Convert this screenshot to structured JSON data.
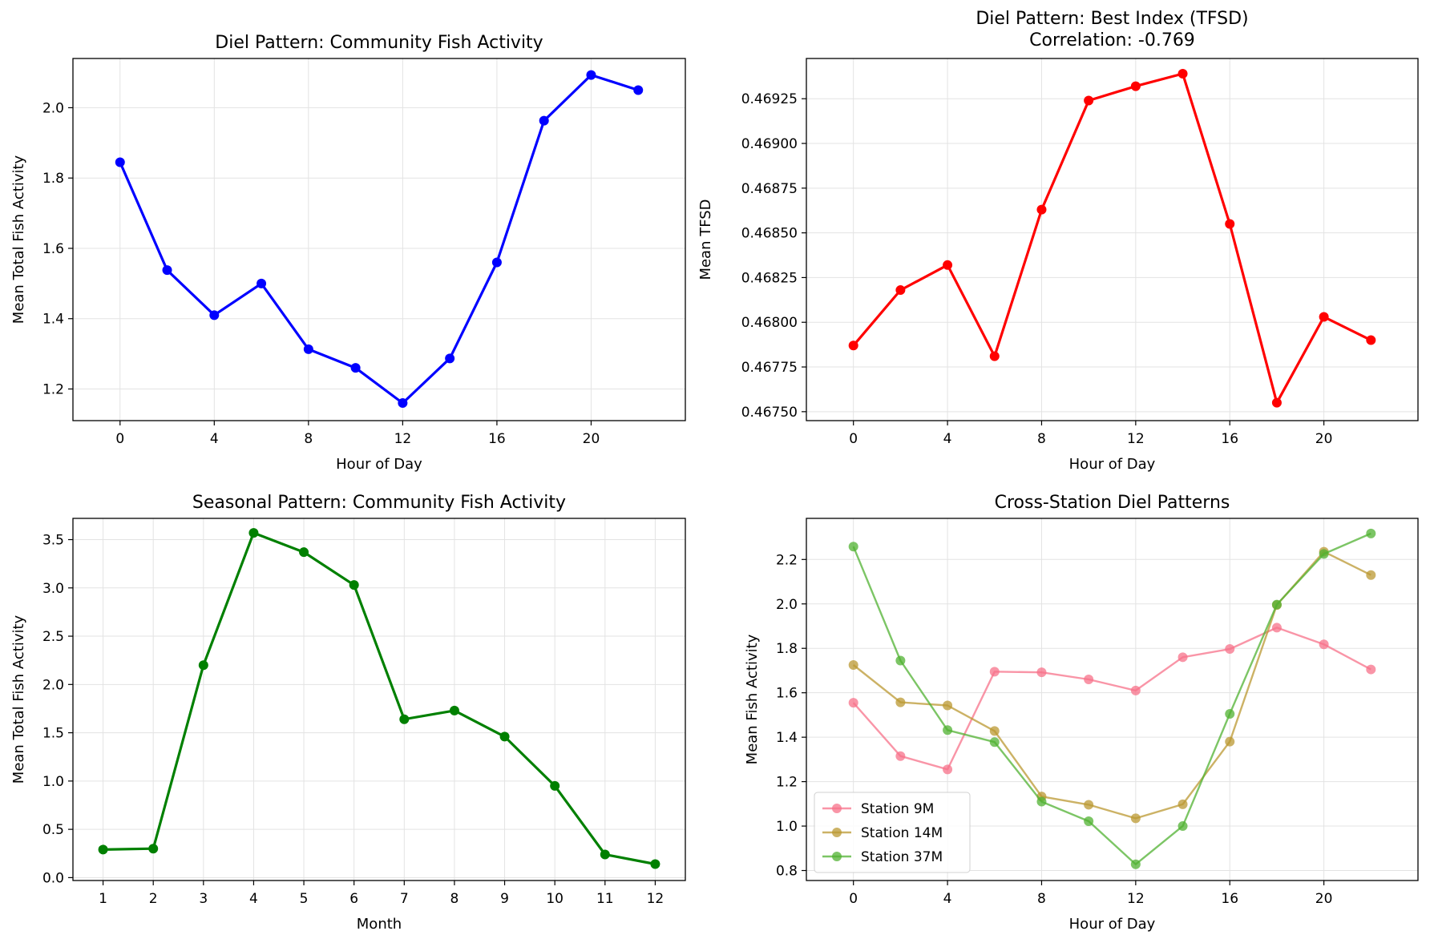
{
  "chart_data": [
    {
      "type": "line",
      "title": "Diel Pattern: Community Fish Activity",
      "xlabel": "Hour of Day",
      "ylabel": "Mean Total Fish Activity",
      "x": [
        0,
        2,
        4,
        6,
        8,
        10,
        12,
        14,
        16,
        18,
        20,
        22
      ],
      "xlim": [
        -2,
        24
      ],
      "ylim": [
        1.11,
        2.14
      ],
      "xticks": [
        0,
        4,
        8,
        12,
        16,
        20
      ],
      "yticks": [
        1.2,
        1.4,
        1.6,
        1.8,
        2.0
      ],
      "yprec": 1,
      "grid": true,
      "series": [
        {
          "color": "#0000ff",
          "alpha": 1,
          "lw": 3.2,
          "r": 6,
          "values": [
            1.845,
            1.538,
            1.41,
            1.5,
            1.313,
            1.26,
            1.16,
            1.287,
            1.56,
            1.963,
            2.093,
            2.05
          ]
        }
      ]
    },
    {
      "type": "line",
      "title": "Diel Pattern: Best Index (TFSD)",
      "subtitle": "Correlation: -0.769",
      "xlabel": "Hour of Day",
      "ylabel": "Mean TFSD",
      "x": [
        0,
        2,
        4,
        6,
        8,
        10,
        12,
        14,
        16,
        18,
        20,
        22
      ],
      "xlim": [
        -2,
        24
      ],
      "ylim": [
        0.46745,
        0.469475
      ],
      "xticks": [
        0,
        4,
        8,
        12,
        16,
        20
      ],
      "yticks": [
        0.4675,
        0.46775,
        0.468,
        0.46825,
        0.4685,
        0.46875,
        0.469,
        0.46925
      ],
      "yprec": 5,
      "grid": true,
      "series": [
        {
          "color": "#ff0000",
          "alpha": 1,
          "lw": 3.2,
          "r": 6,
          "values": [
            0.46787,
            0.46818,
            0.46832,
            0.46781,
            0.46863,
            0.46924,
            0.46932,
            0.46939,
            0.46855,
            0.46755,
            0.46803,
            0.4679
          ]
        }
      ]
    },
    {
      "type": "line",
      "title": "Seasonal Pattern: Community Fish Activity",
      "xlabel": "Month",
      "ylabel": "Mean Total Fish Activity",
      "x": [
        1,
        2,
        3,
        4,
        5,
        6,
        7,
        8,
        9,
        10,
        11,
        12
      ],
      "xlim": [
        0.4,
        12.6
      ],
      "ylim": [
        -0.03,
        3.72
      ],
      "xticks": [
        1,
        2,
        3,
        4,
        5,
        6,
        7,
        8,
        9,
        10,
        11,
        12
      ],
      "yticks": [
        0.0,
        0.5,
        1.0,
        1.5,
        2.0,
        2.5,
        3.0,
        3.5
      ],
      "yprec": 1,
      "grid": true,
      "series": [
        {
          "color": "#008000",
          "alpha": 1,
          "lw": 3.2,
          "r": 6,
          "values": [
            0.29,
            0.3,
            2.2,
            3.57,
            3.37,
            3.03,
            1.64,
            1.73,
            1.46,
            0.95,
            0.24,
            0.14
          ]
        }
      ]
    },
    {
      "type": "line",
      "title": "Cross-Station Diel Patterns",
      "xlabel": "Hour of Day",
      "ylabel": "Mean Fish Activity",
      "x": [
        0,
        2,
        4,
        6,
        8,
        10,
        12,
        14,
        16,
        18,
        20,
        22
      ],
      "xlim": [
        -2,
        24
      ],
      "ylim": [
        0.755,
        2.385
      ],
      "xticks": [
        0,
        4,
        8,
        12,
        16,
        20
      ],
      "yticks": [
        0.8,
        1.0,
        1.2,
        1.4,
        1.6,
        1.8,
        2.0,
        2.2
      ],
      "yprec": 1,
      "grid": true,
      "legend": "lower-left",
      "series": [
        {
          "name": "Station 9M",
          "color": "#f77189",
          "alpha": 0.75,
          "lw": 2.4,
          "r": 6,
          "values": [
            1.555,
            1.315,
            1.255,
            1.695,
            1.692,
            1.66,
            1.61,
            1.76,
            1.797,
            1.893,
            1.818,
            1.705
          ]
        },
        {
          "name": "Station 14M",
          "color": "#bb9832",
          "alpha": 0.75,
          "lw": 2.4,
          "r": 6,
          "values": [
            1.725,
            1.557,
            1.543,
            1.428,
            1.133,
            1.096,
            1.035,
            1.098,
            1.38,
            1.995,
            2.235,
            2.13
          ]
        },
        {
          "name": "Station 37M",
          "color": "#50b131",
          "alpha": 0.75,
          "lw": 2.4,
          "r": 6,
          "values": [
            2.258,
            1.745,
            1.432,
            1.378,
            1.11,
            1.022,
            0.828,
            1.0,
            1.505,
            1.997,
            2.225,
            2.317
          ]
        }
      ]
    }
  ]
}
